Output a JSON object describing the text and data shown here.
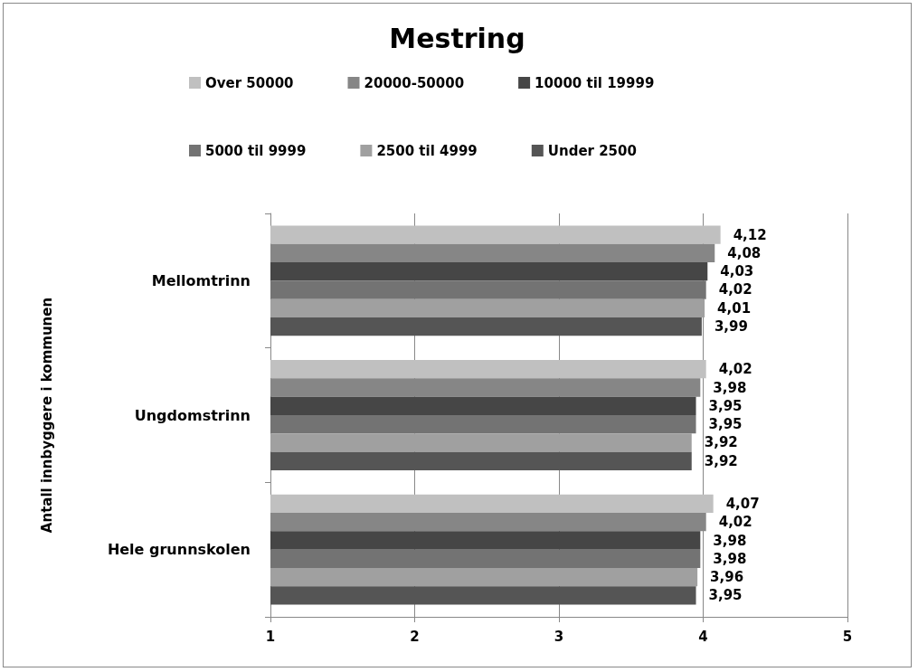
{
  "chart_data": {
    "type": "bar",
    "orientation": "horizontal",
    "title": "Mestring",
    "ylabel": "Antall innbyggere i kommunen",
    "categories": [
      "Mellomtrinn",
      "Ungdomstrinn",
      "Hele grunnskolen"
    ],
    "series": [
      {
        "name": "Over 50000",
        "color": "#c0c0c0",
        "values": [
          4.12,
          4.02,
          4.07
        ],
        "value_labels": [
          "4,12",
          "4,02",
          "4,07"
        ]
      },
      {
        "name": "20000-50000",
        "color": "#868686",
        "values": [
          4.08,
          3.98,
          4.02
        ],
        "value_labels": [
          "4,08",
          "3,98",
          "4,02"
        ]
      },
      {
        "name": "10000 til 19999",
        "color": "#464646",
        "values": [
          4.03,
          3.95,
          3.98
        ],
        "value_labels": [
          "4,03",
          "3,95",
          "3,98"
        ]
      },
      {
        "name": "5000 til 9999",
        "color": "#737373",
        "values": [
          4.02,
          3.95,
          3.98
        ],
        "value_labels": [
          "4,02",
          "3,95",
          "3,98"
        ]
      },
      {
        "name": "2500 til 4999",
        "color": "#a0a0a0",
        "values": [
          4.01,
          3.92,
          3.96
        ],
        "value_labels": [
          "4,01",
          "3,92",
          "3,96"
        ]
      },
      {
        "name": "Under 2500",
        "color": "#555555",
        "values": [
          3.99,
          3.92,
          3.95
        ],
        "value_labels": [
          "3,99",
          "3,92",
          "3,95"
        ]
      }
    ],
    "xlim": [
      1,
      5
    ],
    "xticks": [
      1,
      2,
      3,
      4,
      5
    ],
    "grid": "x",
    "legend": "top"
  }
}
